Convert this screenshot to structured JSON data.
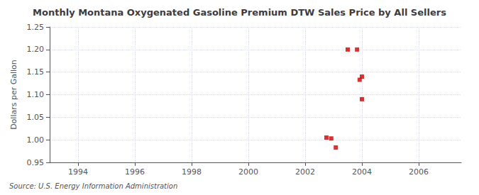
{
  "chart_data": {
    "type": "scatter",
    "title": "Monthly Montana Oxygenated Gasoline Premium DTW Sales Price by All Sellers",
    "ylabel": "Dollars per Gallon",
    "source": "Source: U.S. Energy Information Administration",
    "x": [
      2002.75,
      2002.92,
      2003.08,
      2003.5,
      2003.83,
      2003.92,
      2004.0,
      2004.0
    ],
    "values": [
      1.005,
      1.003,
      0.983,
      1.2,
      1.2,
      1.133,
      1.14,
      1.09
    ],
    "color": "#cc0000",
    "marker": "square",
    "xlim": [
      1993.0,
      2007.5
    ],
    "ylim": [
      0.95,
      1.25
    ],
    "xticks": [
      1994,
      1996,
      1998,
      2000,
      2002,
      2004,
      2006
    ],
    "yticks": [
      0.95,
      {
        "value": 1.0,
        "label": "1.00"
      },
      1.05,
      {
        "value": 1.1,
        "label": "1.10"
      },
      1.15,
      {
        "value": 1.2,
        "label": "1.20"
      },
      1.25
    ],
    "grid": true
  }
}
